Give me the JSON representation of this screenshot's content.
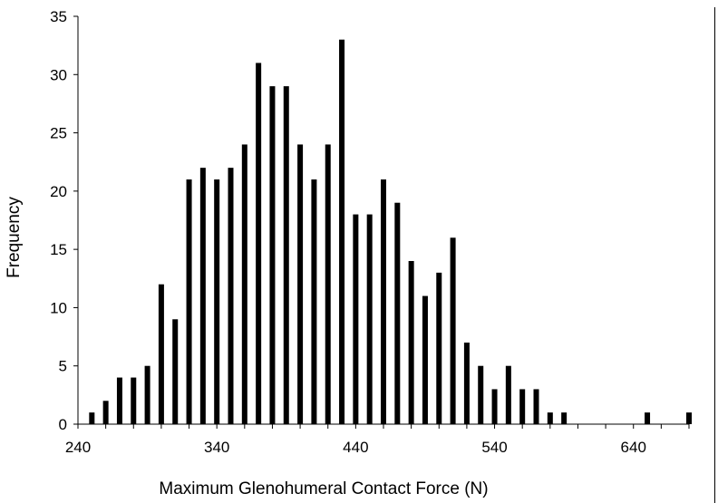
{
  "chart_data": {
    "type": "bar",
    "xlabel": "Maximum Glenohumeral Contact Force (N)",
    "ylabel": "Frequency",
    "xlim": [
      240,
      680
    ],
    "ylim": [
      0,
      35
    ],
    "x_ticks": [
      240,
      340,
      440,
      540,
      640
    ],
    "y_ticks": [
      0,
      5,
      10,
      15,
      20,
      25,
      30,
      35
    ],
    "grid": false,
    "bar_color": "#000000",
    "bin_width": 10,
    "x": [
      250,
      260,
      270,
      280,
      290,
      300,
      310,
      320,
      330,
      340,
      350,
      360,
      370,
      380,
      390,
      400,
      410,
      420,
      430,
      440,
      450,
      460,
      470,
      480,
      490,
      500,
      510,
      520,
      530,
      540,
      550,
      560,
      570,
      580,
      590,
      600,
      610,
      620,
      630,
      640,
      650,
      660,
      670,
      680
    ],
    "values": [
      1,
      2,
      4,
      4,
      5,
      12,
      9,
      21,
      22,
      21,
      22,
      24,
      31,
      29,
      29,
      24,
      21,
      24,
      33,
      18,
      18,
      21,
      19,
      14,
      11,
      13,
      16,
      7,
      5,
      3,
      5,
      3,
      3,
      1,
      1,
      0,
      0,
      0,
      0,
      0,
      1,
      0,
      0,
      1
    ]
  }
}
